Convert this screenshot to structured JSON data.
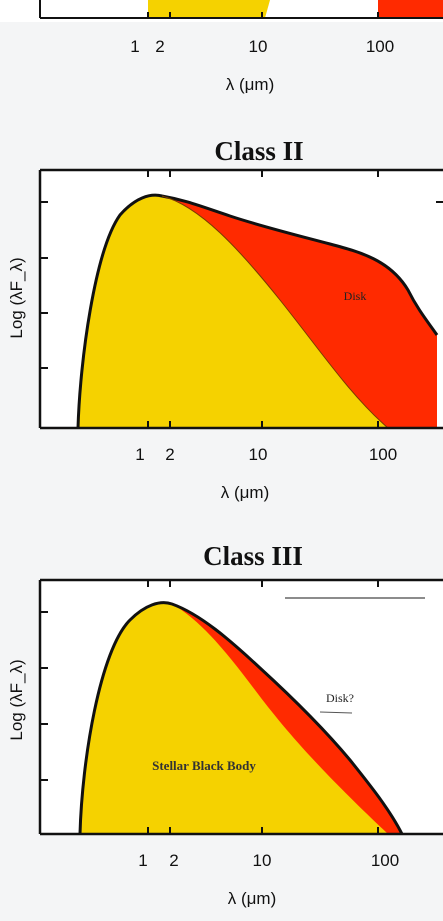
{
  "colors": {
    "stellar": "#f5d200",
    "disk": "#ff2a00",
    "outline": "#111111",
    "background": "#f4f5f6",
    "plot_bg": "#ffffff"
  },
  "top_partial": {
    "x_ticks": [
      "1",
      "2",
      "10",
      "100"
    ],
    "xlabel": "λ (μm)"
  },
  "panels": [
    {
      "title": "Class II",
      "ylabel": "Log (λF_λ)",
      "xlabel": "λ (μm)",
      "x_ticks": [
        "1",
        "2",
        "10",
        "100"
      ],
      "annotations": {
        "disk": "Disk"
      }
    },
    {
      "title": "Class III",
      "ylabel": "Log (λF_λ)",
      "xlabel": "λ (μm)",
      "x_ticks": [
        "1",
        "2",
        "10",
        "100"
      ],
      "annotations": {
        "disk": "Disk?",
        "stellar": "Stellar Black Body"
      }
    }
  ]
}
